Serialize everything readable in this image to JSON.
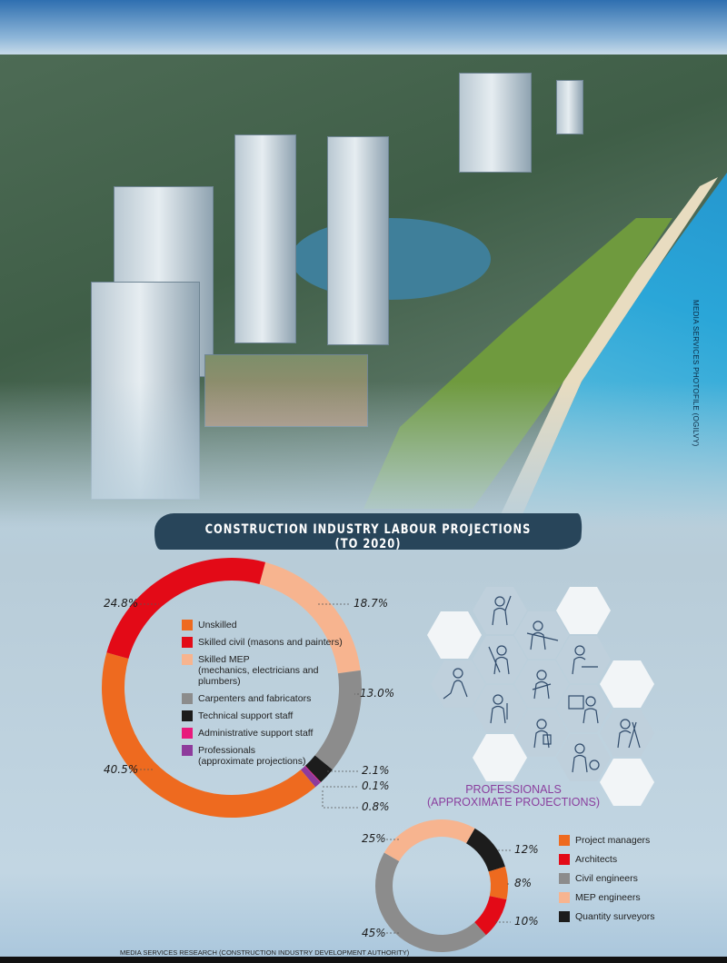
{
  "photo_credit": "MEDIA SERVICES PHOTOFILE (OGILVY)",
  "title": "CONSTRUCTION INDUSTRY LABOUR PROJECTIONS (TO 2020)",
  "source": "MEDIA SERVICES RESEARCH (CONSTRUCTION INDUSTRY DEVELOPMENT AUTHORITY)",
  "chart_data": [
    {
      "type": "pie",
      "style": "donut",
      "title": "",
      "categories": [
        "Skilled MEP (mechanics, electricians and plumbers)",
        "Carpenters and fabricators",
        "Technical support staff",
        "Administrative support staff",
        "Professionals (approximate projections)",
        "Unskilled",
        "Skilled civil (masons and painters)"
      ],
      "values": [
        18.7,
        13.0,
        2.1,
        0.1,
        0.8,
        40.5,
        24.8
      ],
      "labels": [
        "18.7%",
        "13.0%",
        "2.1%",
        "0.1%",
        "0.8%",
        "40.5%",
        "24.8%"
      ],
      "colors": [
        "#f7b48f",
        "#8c8c8c",
        "#1c1c1c",
        "#e8197c",
        "#8e3b9c",
        "#ee6a1f",
        "#e30a17"
      ],
      "legend": [
        {
          "label": "Unskilled",
          "sub": "",
          "color": "#ee6a1f"
        },
        {
          "label": "Skilled civil (masons and painters)",
          "sub": "",
          "color": "#e30a17"
        },
        {
          "label": "Skilled MEP",
          "sub": "(mechanics, electricians and plumbers)",
          "color": "#f7b48f"
        },
        {
          "label": "Carpenters and fabricators",
          "sub": "",
          "color": "#8c8c8c"
        },
        {
          "label": "Technical support staff",
          "sub": "",
          "color": "#1c1c1c"
        },
        {
          "label": "Administrative support staff",
          "sub": "",
          "color": "#e8197c"
        },
        {
          "label": "Professionals",
          "sub": "(approximate projections)",
          "color": "#8e3b9c"
        }
      ],
      "legend_position": "center"
    },
    {
      "type": "pie",
      "style": "donut",
      "title": "PROFESSIONALS (APPROXIMATE PROJECTIONS)",
      "title_lines": [
        "PROFESSIONALS",
        "(APPROXIMATE PROJECTIONS)"
      ],
      "categories": [
        "Quantity surveyors",
        "Project managers",
        "Architects",
        "Civil engineers",
        "MEP engineers"
      ],
      "values": [
        12,
        8,
        10,
        45,
        25
      ],
      "labels": [
        "12%",
        "8%",
        "10%",
        "45%",
        "25%"
      ],
      "colors": [
        "#1c1c1c",
        "#ee6a1f",
        "#e30a17",
        "#8c8c8c",
        "#f7b48f"
      ],
      "legend": [
        {
          "label": "Project managers",
          "color": "#ee6a1f"
        },
        {
          "label": "Architects",
          "color": "#e30a17"
        },
        {
          "label": "Civil engineers",
          "color": "#8c8c8c"
        },
        {
          "label": "MEP engineers",
          "color": "#f7b48f"
        },
        {
          "label": "Quantity surveyors",
          "color": "#1c1c1c"
        }
      ],
      "legend_position": "right"
    }
  ]
}
